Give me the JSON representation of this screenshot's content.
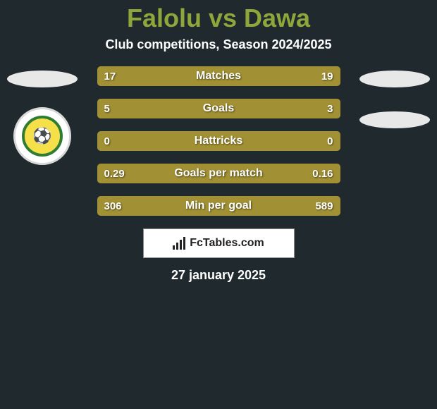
{
  "background_color": "#1f292e",
  "title": {
    "text": "Falolu vs Dawa",
    "color": "#8fa63b",
    "fontsize": 36
  },
  "subtitle": {
    "text": "Club competitions, Season 2024/2025",
    "color": "#ffffff",
    "fontsize": 18
  },
  "left_team": {
    "logo_present": true,
    "logo_border_color": "#2e7d32",
    "logo_bg": "#ffffff",
    "logo_accent": "#f5e04a",
    "logo_glyph": "⚽"
  },
  "right_team": {
    "logo_present": false
  },
  "bars": {
    "left_color": "#a19034",
    "right_color": "#a19034",
    "track_color": "#a19034",
    "height": 28,
    "gap": 18,
    "label_color": "#ffffff",
    "value_color": "#ffffff",
    "rows": [
      {
        "label": "Matches",
        "left_val": "17",
        "right_val": "19",
        "left_pct": 48,
        "right_pct": 52
      },
      {
        "label": "Goals",
        "left_val": "5",
        "right_val": "3",
        "left_pct": 62,
        "right_pct": 38
      },
      {
        "label": "Hattricks",
        "left_val": "0",
        "right_val": "0",
        "left_pct": 50,
        "right_pct": 50
      },
      {
        "label": "Goals per match",
        "left_val": "0.29",
        "right_val": "0.16",
        "left_pct": 64,
        "right_pct": 36
      },
      {
        "label": "Min per goal",
        "left_val": "306",
        "right_val": "589",
        "left_pct": 34,
        "right_pct": 66
      }
    ]
  },
  "brand": {
    "text": "FcTables.com",
    "box_bg": "#ffffff",
    "box_border": "#8a8a8a"
  },
  "date": {
    "text": "27 january 2025",
    "color": "#ffffff"
  },
  "ellipse_color": "#e8e8e8"
}
